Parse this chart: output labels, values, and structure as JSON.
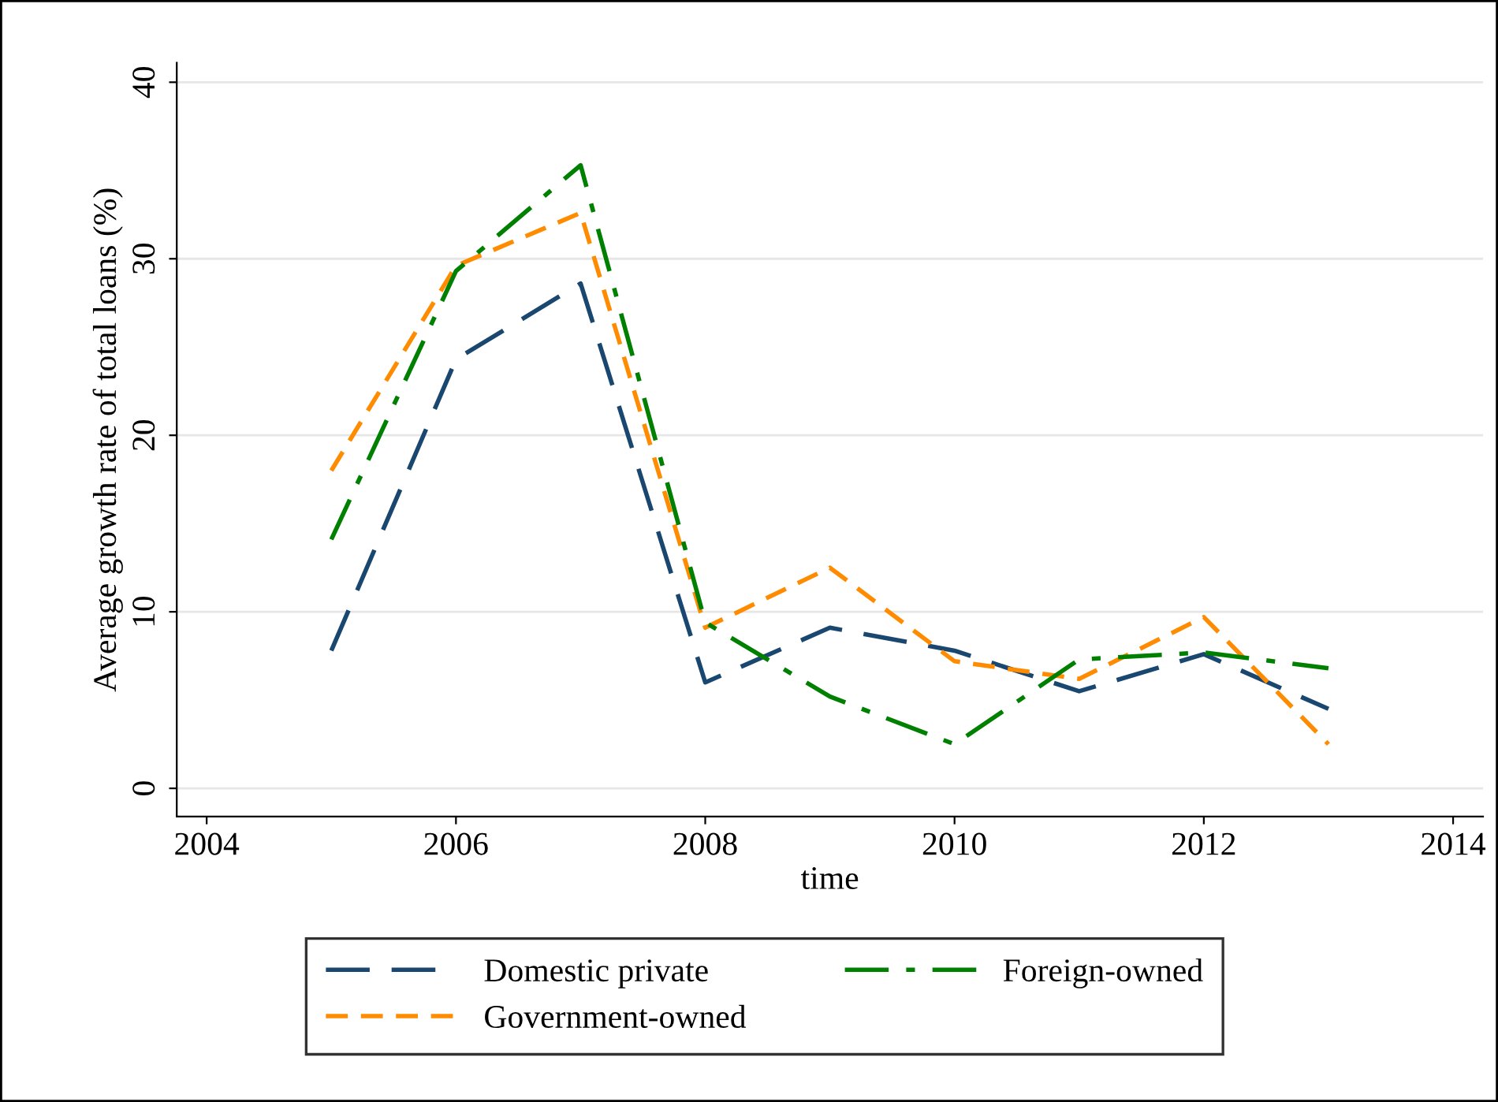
{
  "chart_data": {
    "type": "line",
    "xlabel": "time",
    "ylabel": "Average growth rate of total loans (%)",
    "x": [
      2005,
      2006,
      2007,
      2008,
      2009,
      2010,
      2011,
      2012,
      2013
    ],
    "series": [
      {
        "name": "Domestic private",
        "color": "#1a476f",
        "line_style": "longdash",
        "values": [
          7.8,
          24.3,
          28.6,
          6.0,
          9.1,
          7.8,
          5.5,
          7.6,
          4.5
        ]
      },
      {
        "name": "Government-owned",
        "color": "#ff8c00",
        "line_style": "dashed",
        "values": [
          18.0,
          29.6,
          32.6,
          9.1,
          12.5,
          7.2,
          6.2,
          9.7,
          2.5
        ]
      },
      {
        "name": "Foreign-owned",
        "color": "#008000",
        "line_style": "dashdot",
        "values": [
          14.1,
          29.3,
          35.3,
          9.4,
          5.2,
          2.5,
          7.3,
          7.7,
          6.8
        ]
      }
    ],
    "xlim": [
      2003.76,
      2014.24
    ],
    "xticks": [
      2004,
      2006,
      2008,
      2010,
      2012,
      2014
    ],
    "ylim": [
      -1.6,
      41.1
    ],
    "yticks": [
      0,
      10,
      20,
      30,
      40
    ],
    "grid": "y",
    "legend": "bottom",
    "marker": "none"
  }
}
